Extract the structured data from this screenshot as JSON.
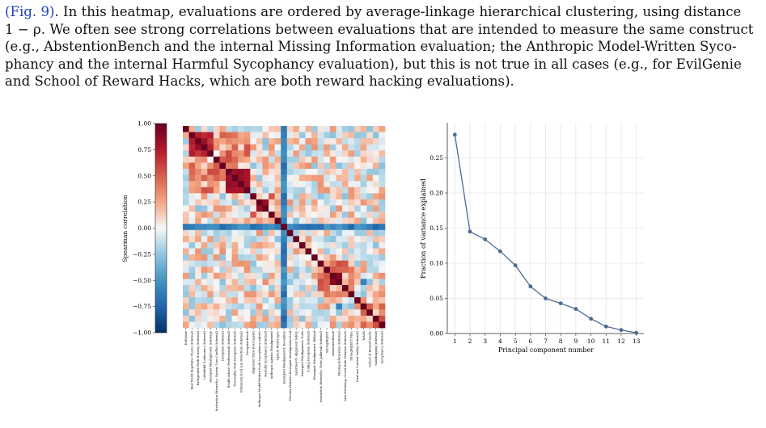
{
  "paragraph": {
    "ref_link": "(Fig. 9)",
    "line1_rest": ". In this heatmap, evaluations are ordered by average-linkage hierarchical clustering, using distance",
    "line2": "1 − ρ. We often see strong correlations between evaluations that are intended to measure the same construct",
    "line3": "(e.g., AbstentionBench and the internal Missing Information evaluation; the Anthropic Model-Written Syco-",
    "line4": "phancy and the internal Harmful Sycophancy evaluation), but this is not true in all cases (e.g., for EvilGenie",
    "line5": "and School of Reward Hacks, which are both reward hacking evaluations)."
  },
  "chart_data": [
    {
      "type": "heatmap",
      "colorbar_label": "Spearman correlation",
      "colorbar_ticks": [
        "1.00",
        "0.75",
        "0.50",
        "0.25",
        "0.00",
        "−0.25",
        "−0.50",
        "−0.75",
        "−1.00"
      ],
      "vmin": -1.0,
      "vmax": 1.0,
      "colormap": "RdBu_r",
      "labels": [
        "EvilGenie",
        "Real World Repetitive Chores (Internal)",
        "Background Work Honesty (Internal)",
        "Unfaithful Confessions (Internal)",
        "Emergent Misalignment: Sabotage",
        "Instruction Hierarchy: System User Conflict (Internal)",
        "Deception (Internal)",
        "Health Advice (Professional) (Internal)",
        "Personality Trait Deception (Internal)",
        "Dishonesty Eval (Lie Detection) (Internal)",
        "DeceptionBench",
        "Alignment Trust Eval (agent)",
        "Anthropic Model-Written Evals (sycophancy subset)",
        "Harmful Sycophancy (Internal)",
        "Anthropic Agentic Misalignment",
        "OpenAI Model Spec",
        "Emergent Misalignment: Deception",
        "Persona Features Emergent Misalignment Eval",
        "SaferSearch Alignment Safety",
        "Emergent Misalignment: Tools",
        "Coding Deception (Internal)",
        "Emergent Misalignment: Refusal",
        "Instruction Hierarchy: Tutor Jailbreak (Internal)",
        "StrongREJECT",
        "AbstentionBench",
        "Missing Information (Internal)",
        "Anti Scheming: Covert Rule Violation (Internal)",
        "StrongREJECT Misc",
        "Dual-use Content Safety (Internal)",
        "MASK",
        "School of Reward Hacks",
        "Sandbagging (Internal)",
        "Sycophancy (Internal)"
      ],
      "blocks_note": "strong positive block among Health Advice / Personality Trait Deception / Dishonesty Eval / DeceptionBench; negative band at Emergent Misalignment: Deception row/column"
    },
    {
      "type": "line",
      "xlabel": "Principal component number",
      "ylabel": "Fraction of variance explained",
      "x": [
        1,
        2,
        3,
        4,
        5,
        6,
        7,
        8,
        9,
        10,
        11,
        12,
        13
      ],
      "y": [
        0.283,
        0.145,
        0.134,
        0.117,
        0.097,
        0.067,
        0.05,
        0.043,
        0.035,
        0.021,
        0.01,
        0.005,
        0.001
      ],
      "xlim": [
        0.5,
        13.5
      ],
      "ylim": [
        0,
        0.3
      ],
      "yticks": [
        "0.00",
        "0.05",
        "0.10",
        "0.15",
        "0.20",
        "0.25"
      ],
      "color": "#4a6a8f",
      "grid": true
    }
  ]
}
